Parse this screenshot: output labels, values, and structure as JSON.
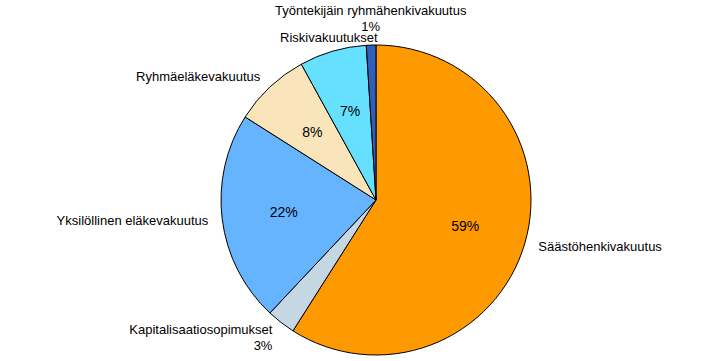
{
  "chart_data": {
    "type": "pie",
    "categories": [
      "Säästöhenkivakuutus",
      "Kapitalisaatiosopimukset",
      "Yksilöllinen eläkevakuutus",
      "Ryhmäeläkevakuutus",
      "Riskivakuutukset",
      "Työntekijäin ryhmähenkivakuutus"
    ],
    "values": [
      59,
      3,
      22,
      8,
      7,
      1
    ],
    "value_labels": [
      "59%",
      "3%",
      "22%",
      "8%",
      "7%",
      "1%"
    ],
    "colors": [
      "#ff9900",
      "#c5d7e2",
      "#66b3ff",
      "#fae5bb",
      "#66e0ff",
      "#2f5fb8"
    ],
    "data_labels": true
  }
}
